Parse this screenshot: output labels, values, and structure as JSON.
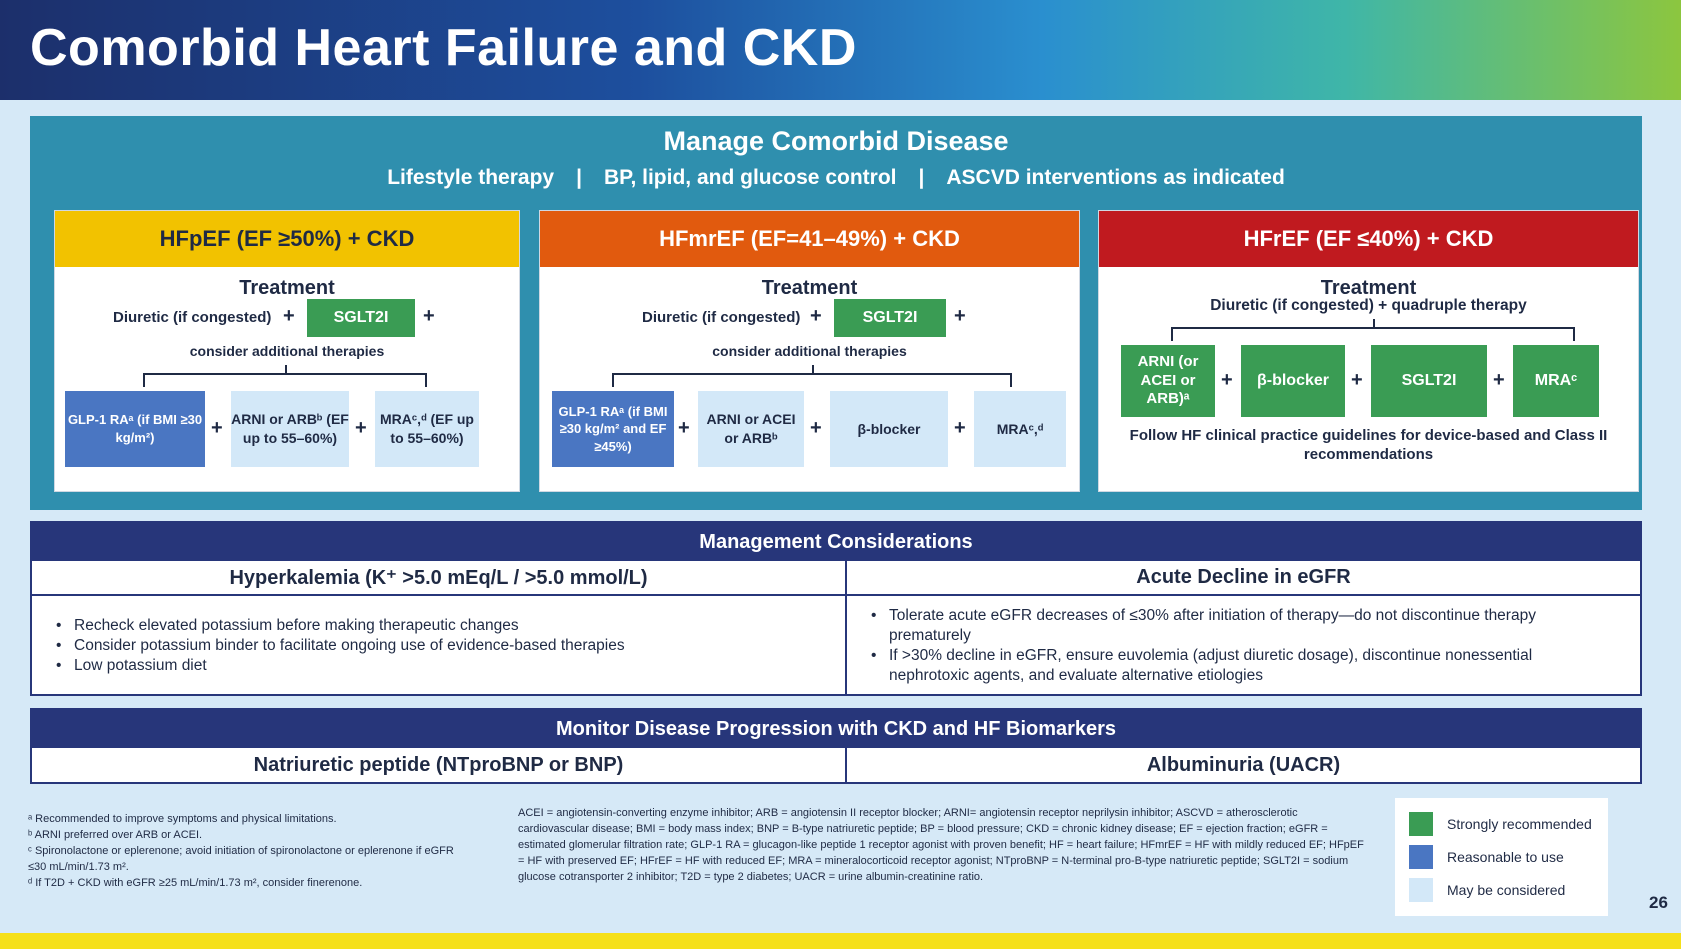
{
  "title": "Comorbid Heart Failure and CKD",
  "manage": {
    "title": "Manage Comorbid Disease",
    "items": [
      "Lifestyle therapy",
      "BP, lipid, and glucose control",
      "ASCVD interventions as indicated"
    ],
    "separator": "|"
  },
  "panels": {
    "hfpef": {
      "title": "HFpEF (EF ≥50%) + CKD",
      "treatment": "Treatment",
      "diuretic": "Diuretic (if congested)",
      "sglt2i": "SGLT2I",
      "consider": "consider additional therapies",
      "glp1": "GLP-1 RAᵃ (if BMI ≥30 kg/m²)",
      "arni": "ARNI or ARBᵇ (EF up to 55–60%)",
      "mra": "MRAᶜ,ᵈ (EF up to 55–60%)"
    },
    "hfmref": {
      "title": "HFmrEF (EF=41–49%) + CKD",
      "treatment": "Treatment",
      "diuretic": "Diuretic (if congested)",
      "sglt2i": "SGLT2I",
      "consider": "consider additional therapies",
      "glp1": "GLP-1 RAᵃ (if BMI ≥30 kg/m² and EF ≥45%)",
      "arni": "ARNI or ACEI or ARBᵇ",
      "beta": "β-blocker",
      "mra": "MRAᶜ,ᵈ"
    },
    "hfref": {
      "title": "HFrEF (EF ≤40%) + CKD",
      "treatment": "Treatment",
      "diuretic": "Diuretic (if congested) + quadruple therapy",
      "arni": "ARNI (or ACEI or ARB)ᵃ",
      "beta": "β-blocker",
      "sglt2i": "SGLT2I",
      "mra": "MRAᶜ",
      "follow": "Follow HF clinical practice guidelines for device-based and Class II recommendations"
    },
    "plus": "+"
  },
  "management": {
    "title": "Management Considerations",
    "hyper_title": "Hyperkalemia (K⁺ >5.0 mEq/L / >5.0 mmol/L)",
    "hyper_items": [
      "Recheck elevated potassium before making therapeutic changes",
      "Consider potassium binder to facilitate ongoing use of evidence-based therapies",
      "Low potassium diet"
    ],
    "egfr_title": "Acute Decline in eGFR",
    "egfr_items": [
      "Tolerate acute eGFR decreases of ≤30% after initiation of therapy—do not discontinue therapy prematurely",
      "If >30% decline in eGFR, ensure euvolemia (adjust diuretic dosage), discontinue nonessential nephrotoxic agents, and evaluate alternative etiologies"
    ]
  },
  "monitor": {
    "title": "Monitor Disease Progression with CKD and HF Biomarkers",
    "left": "Natriuretic peptide (NTproBNP or BNP)",
    "right": "Albuminuria (UACR)"
  },
  "footnotes": [
    "ᵃ Recommended to improve symptoms and physical limitations.",
    "ᵇ ARNI preferred over ARB or ACEI.",
    "ᶜ Spironolactone or eplerenone; avoid initiation of spironolactone or eplerenone if eGFR ≤30 mL/min/1.73 m².",
    "ᵈ If T2D + CKD with eGFR ≥25 mL/min/1.73 m², consider finerenone."
  ],
  "abbreviations": "ACEI = angiotensin-converting enzyme inhibitor; ARB = angiotensin II receptor blocker; ARNI= angiotensin receptor neprilysin inhibitor; ASCVD = atherosclerotic cardiovascular disease; BMI = body mass index; BNP = B-type natriuretic peptide; BP = blood pressure; CKD = chronic kidney disease; EF = ejection fraction; eGFR = estimated glomerular filtration rate; GLP-1 RA = glucagon-like peptide 1 receptor agonist with proven benefit; HF = heart failure; HFmrEF = HF with mildly reduced EF; HFpEF = HF with preserved EF; HFrEF = HF with reduced EF; MRA = mineralocorticoid receptor agonist; NTproBNP = N-terminal pro-B-type natriuretic peptide; SGLT2I = sodium glucose cotransporter 2 inhibitor; T2D = type 2 diabetes; UACR = urine albumin-creatinine ratio.",
  "legend": [
    {
      "label": "Strongly recommended",
      "color": "#3a9c54"
    },
    {
      "label": "Reasonable to use",
      "color": "#4a76c2"
    },
    {
      "label": "May be considered",
      "color": "#d3e8f8"
    }
  ],
  "page_number": "26"
}
